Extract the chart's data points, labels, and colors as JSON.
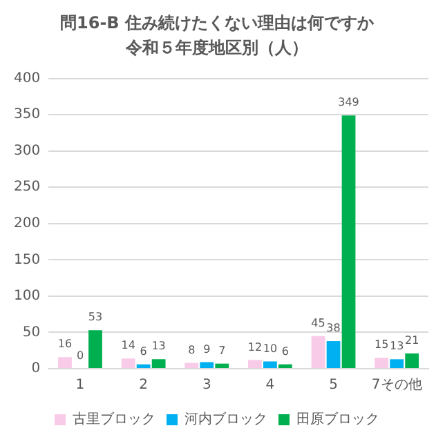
{
  "chart_data": {
    "type": "bar",
    "title": "問16-B 住み続けたくない理由は何ですか",
    "subtitle": "令和５年度地区別（人）",
    "categories": [
      "1",
      "2",
      "3",
      "4",
      "5",
      "7その他"
    ],
    "series": [
      {
        "name": "古里ブロック",
        "color": "#f8cbe8",
        "values": [
          16,
          14,
          8,
          12,
          45,
          15
        ]
      },
      {
        "name": "河内ブロック",
        "color": "#00b0f0",
        "values": [
          0,
          6,
          9,
          10,
          38,
          13
        ]
      },
      {
        "name": "田原ブロック",
        "color": "#00b050",
        "values": [
          53,
          13,
          7,
          6,
          349,
          21
        ]
      }
    ],
    "ylim": [
      0,
      400
    ],
    "yticks": [
      0,
      50,
      100,
      150,
      200,
      250,
      300,
      350,
      400
    ],
    "grid": "y",
    "legend": "bottom",
    "data_labels": true
  }
}
